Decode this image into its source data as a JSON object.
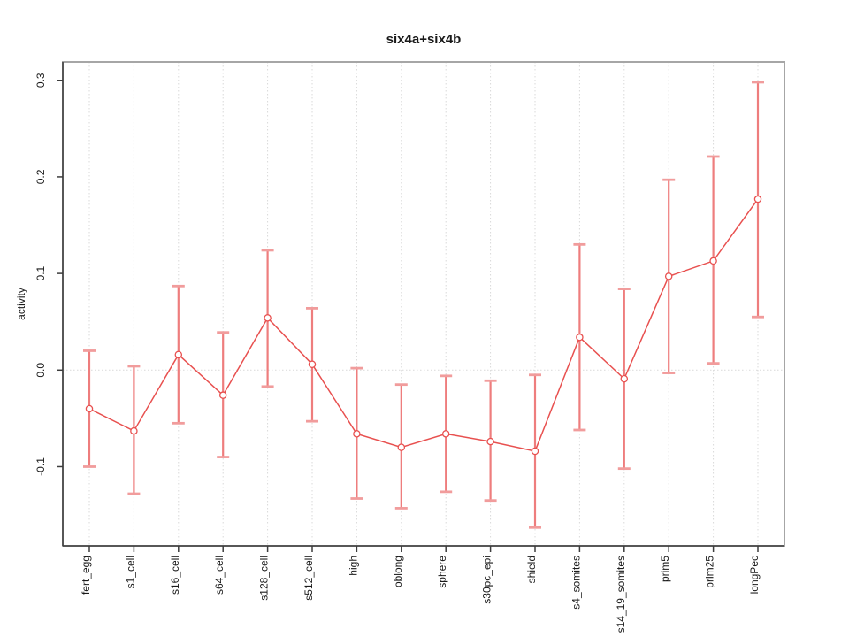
{
  "window": {
    "background": "#ffffff"
  },
  "chart_data": {
    "type": "line",
    "title": "six4a+six4b",
    "xlabel": "",
    "ylabel": "activity",
    "categories": [
      "fert_egg",
      "s1_cell",
      "s16_cell",
      "s64_cell",
      "s128_cell",
      "s512_cell",
      "high",
      "oblong",
      "sphere",
      "s30pc_epi",
      "shield",
      "s4_somites",
      "s14_19_somites",
      "prim5",
      "prim25",
      "longPec"
    ],
    "series": [
      {
        "name": "six4a+six4b activity",
        "values": [
          -0.04,
          -0.063,
          0.016,
          -0.026,
          0.054,
          0.006,
          -0.066,
          -0.08,
          -0.066,
          -0.074,
          -0.084,
          0.034,
          -0.009,
          0.097,
          0.113,
          0.177
        ],
        "error_upper": [
          0.02,
          0.004,
          0.087,
          0.039,
          0.124,
          0.064,
          0.002,
          -0.015,
          -0.006,
          -0.011,
          -0.005,
          0.13,
          0.084,
          0.197,
          0.221,
          0.298
        ],
        "error_lower": [
          -0.1,
          -0.128,
          -0.055,
          -0.09,
          -0.017,
          -0.053,
          -0.133,
          -0.143,
          -0.126,
          -0.135,
          -0.163,
          -0.062,
          -0.102,
          -0.003,
          0.007,
          0.055
        ]
      }
    ],
    "y_ticks": [
      -0.1,
      0.0,
      0.1,
      0.2,
      0.3
    ],
    "y_tick_labels": [
      "-0.1",
      "0.0",
      "0.1",
      "0.2",
      "0.3"
    ],
    "ylim": [
      -0.182,
      0.319
    ],
    "grid": "vertical-dotted-per-category, dotted-zero-line",
    "legend_position": "none",
    "reference_line_y": 0.0,
    "colors": {
      "point_and_line": "#e8504f",
      "error_bar": "#ee7d7d",
      "error_cap": "#f19c9c",
      "gridline": "#d9d9d9",
      "zero_line": "#dedede",
      "box_frame": "#a6a6a6",
      "axis_line": "#3d3d3d"
    }
  }
}
